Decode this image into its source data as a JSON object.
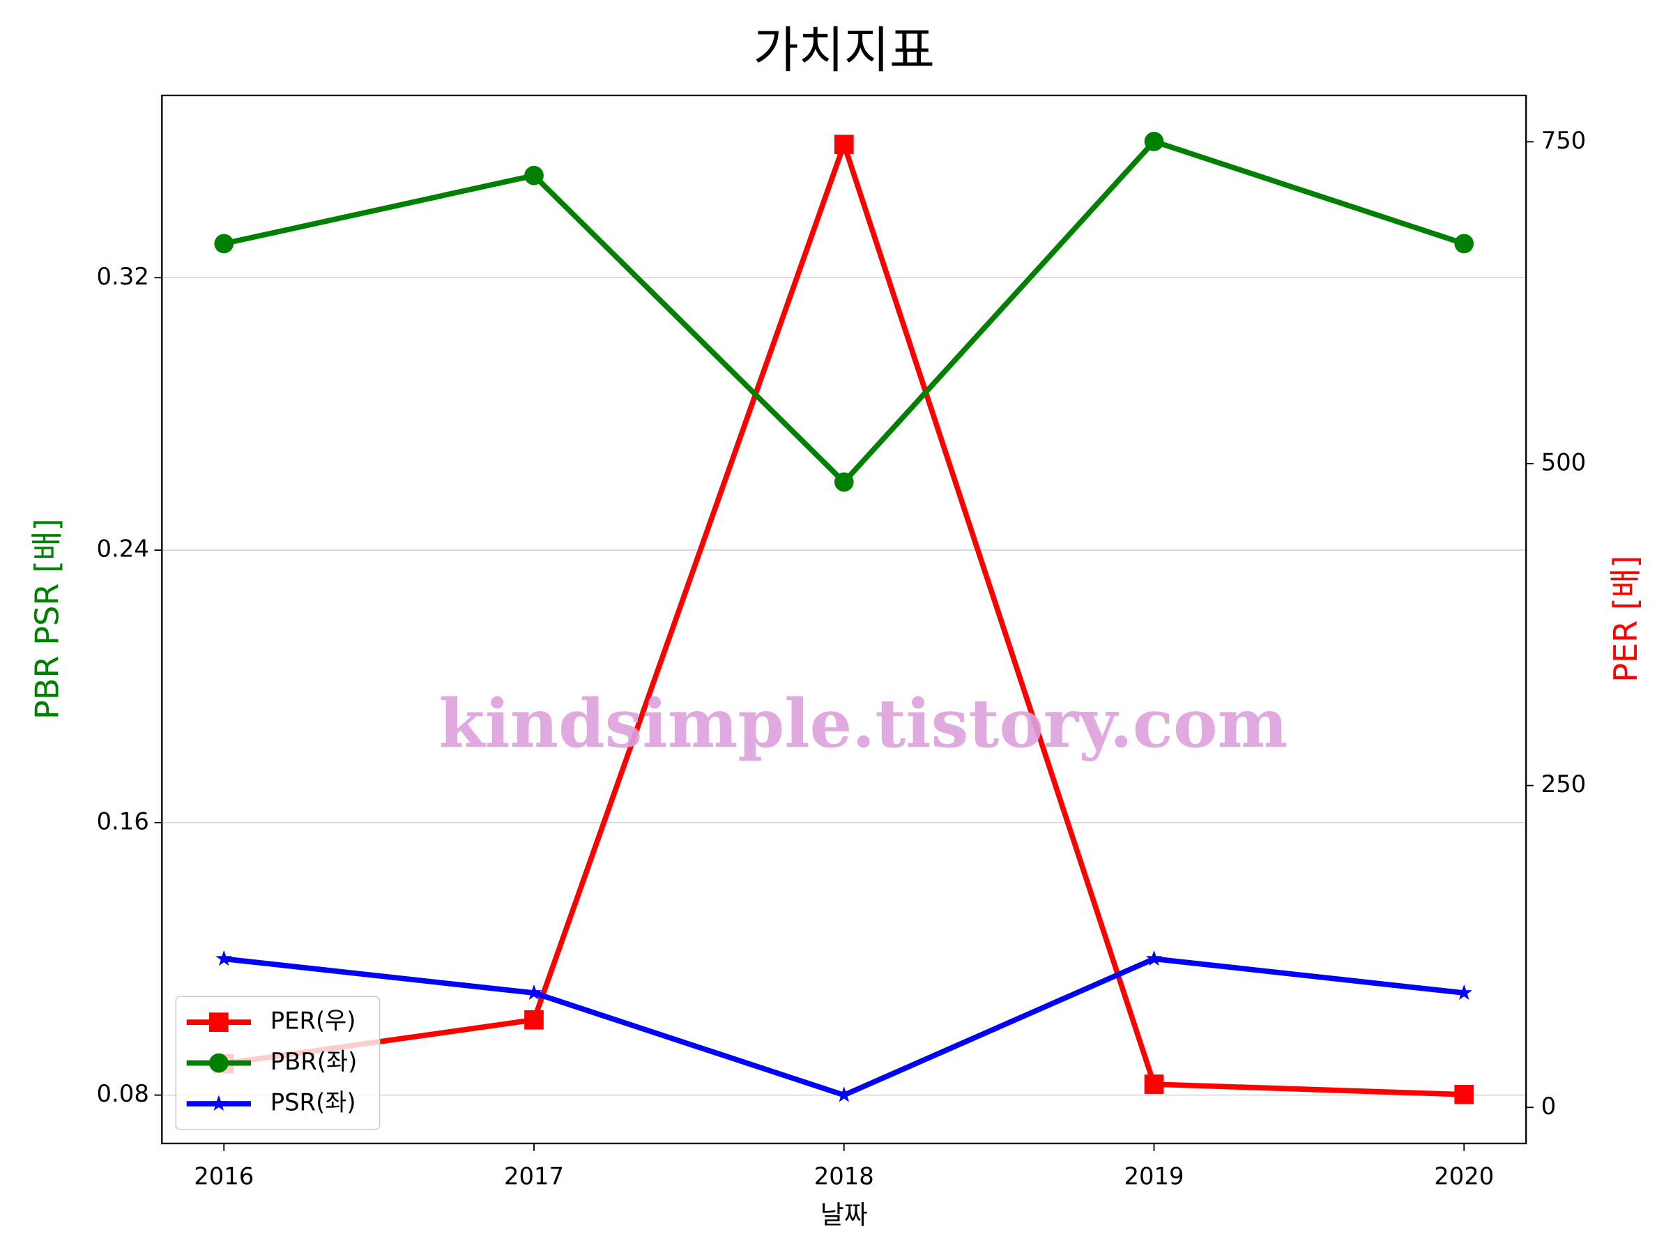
{
  "chart_data": {
    "type": "line",
    "title": "가치지표",
    "xlabel": "날짜",
    "ylabel": "PBR PSR [배]",
    "y2label": "PER [배]",
    "watermark": "kindsimple.tistory.com",
    "x": [
      2016,
      2017,
      2018,
      2019,
      2020
    ],
    "xlim": [
      2015.8,
      2020.2
    ],
    "xticks": [
      2016,
      2017,
      2018,
      2019,
      2020
    ],
    "ylim": [
      0.0658,
      0.3735
    ],
    "yticks": [
      0.08,
      0.16,
      0.24,
      0.32
    ],
    "y2lim": [
      -28,
      786
    ],
    "y2ticks": [
      0,
      250,
      500,
      750
    ],
    "grid": true,
    "legend": "lower left",
    "series": [
      {
        "name": "PER(우)",
        "color": "#ff0000",
        "marker": "square",
        "axis": "y2",
        "values": [
          34,
          68,
          748,
          18,
          10
        ]
      },
      {
        "name": "PBR(좌)",
        "color": "#008000",
        "marker": "circle",
        "values": [
          0.33,
          0.35,
          0.26,
          0.36,
          0.33
        ]
      },
      {
        "name": "PSR(좌)",
        "color": "#0000ff",
        "marker": "star",
        "values": [
          0.12,
          0.11,
          0.08,
          0.12,
          0.11
        ]
      }
    ]
  }
}
